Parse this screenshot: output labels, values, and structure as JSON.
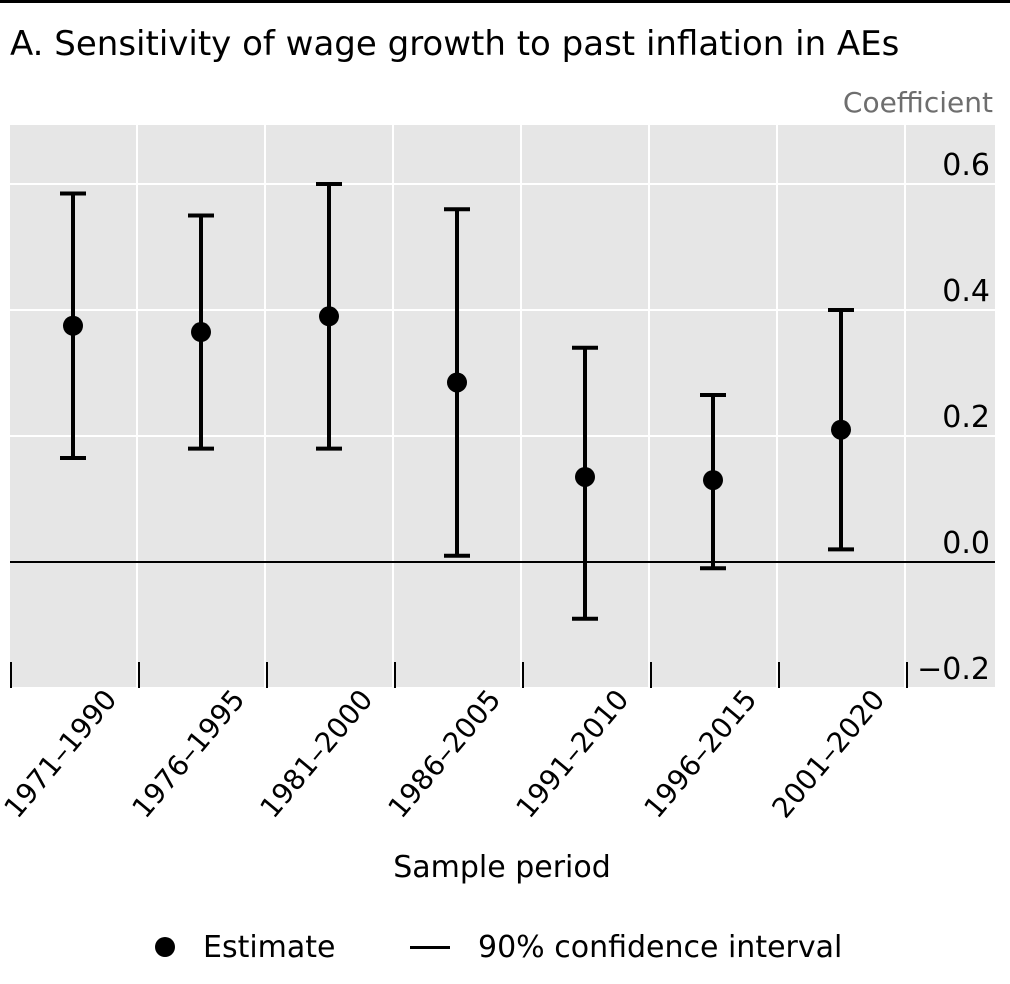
{
  "chart_data": {
    "type": "errorbar",
    "title": "A. Sensitivity of wage growth to past inflation in AEs",
    "ylabel": "Coefficient",
    "xlabel": "Sample period",
    "ylim": [
      -0.2,
      0.7
    ],
    "yticks": [
      -0.2,
      0.0,
      0.2,
      0.4,
      0.6
    ],
    "ytick_labels": [
      "−0.2",
      "0.0",
      "0.2",
      "0.4",
      "0.6"
    ],
    "categories": [
      "1971–1990",
      "1976–1995",
      "1981–2000",
      "1986–2005",
      "1991–2010",
      "1996–2015",
      "2001–2020"
    ],
    "series": [
      {
        "name": "Estimate",
        "values": [
          0.375,
          0.365,
          0.39,
          0.285,
          0.135,
          0.13,
          0.21
        ],
        "ci_lower": [
          0.165,
          0.18,
          0.18,
          0.01,
          -0.09,
          -0.01,
          0.02
        ],
        "ci_upper": [
          0.585,
          0.55,
          0.6,
          0.56,
          0.34,
          0.265,
          0.4
        ]
      }
    ],
    "reference_line": 0.0,
    "grid": true,
    "legend_position": "bottom-center",
    "legend": [
      "Estimate",
      "90% confidence interval"
    ]
  },
  "colors": {
    "plot_background": "#e6e6e6",
    "gridline": "#ffffff",
    "marks": "#000000",
    "ylabel_text": "#6e6e6e"
  }
}
